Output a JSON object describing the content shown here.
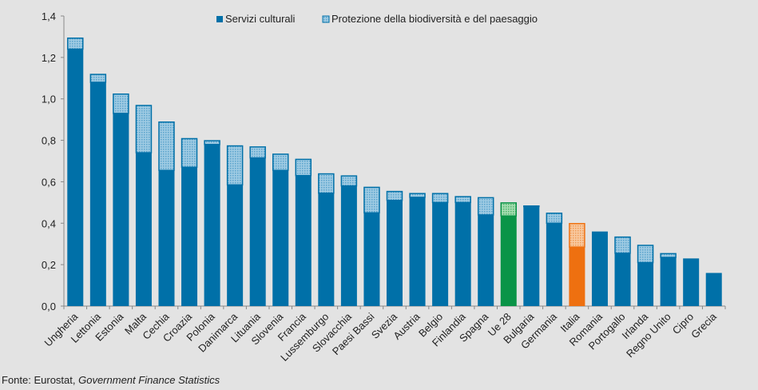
{
  "chart_data": {
    "type": "bar",
    "stacked": true,
    "categories": [
      "Ungheria",
      "Lettonia",
      "Estonia",
      "Malta",
      "Cechia",
      "Croazia",
      "Polonia",
      "Danimarca",
      "Lituania",
      "Slovenia",
      "Francia",
      "Lussemburgo",
      "Slovacchia",
      "Paesi Bassi",
      "Svezia",
      "Austria",
      "Belgio",
      "Finlandia",
      "Spagna",
      "Ue 28",
      "Bulgaria",
      "Germania",
      "Italia",
      "Romania",
      "Portogallo",
      "Irlanda",
      "Regno Unito",
      "Cipro",
      "Grecia"
    ],
    "series": [
      {
        "name": "Servizi culturali",
        "values": [
          1.24,
          1.08,
          0.93,
          0.74,
          0.655,
          0.67,
          0.78,
          0.585,
          0.715,
          0.655,
          0.63,
          0.545,
          0.58,
          0.45,
          0.51,
          0.525,
          0.5,
          0.5,
          0.44,
          0.435,
          0.48,
          0.4,
          0.285,
          0.36,
          0.255,
          0.21,
          0.235,
          0.23,
          0.16
        ]
      },
      {
        "name": "Protezione della biodiversità e del paesaggio",
        "values": [
          0.055,
          0.04,
          0.095,
          0.23,
          0.235,
          0.14,
          0.02,
          0.19,
          0.055,
          0.08,
          0.08,
          0.095,
          0.05,
          0.125,
          0.045,
          0.02,
          0.045,
          0.03,
          0.085,
          0.065,
          0.005,
          0.05,
          0.115,
          0,
          0.08,
          0.085,
          0.02,
          0,
          0
        ]
      }
    ],
    "highlight": {
      "Ue 28": "#0a9447",
      "Italia": "#ee7010"
    },
    "colors": {
      "base": "#0070a8",
      "hatch_light": "#9fcbe3",
      "green_light": "#8fd3a0",
      "orange_light": "#f6bb8c"
    },
    "ylim": [
      0,
      1.4
    ],
    "yticks": [
      "0,0",
      "0,2",
      "0,4",
      "0,6",
      "0,8",
      "1,0",
      "1,2",
      "1,4"
    ],
    "grid": false,
    "legend_position": "top"
  },
  "source": {
    "prefix": "Fonte: Eurostat, ",
    "title": "Government Finance Statistics"
  }
}
